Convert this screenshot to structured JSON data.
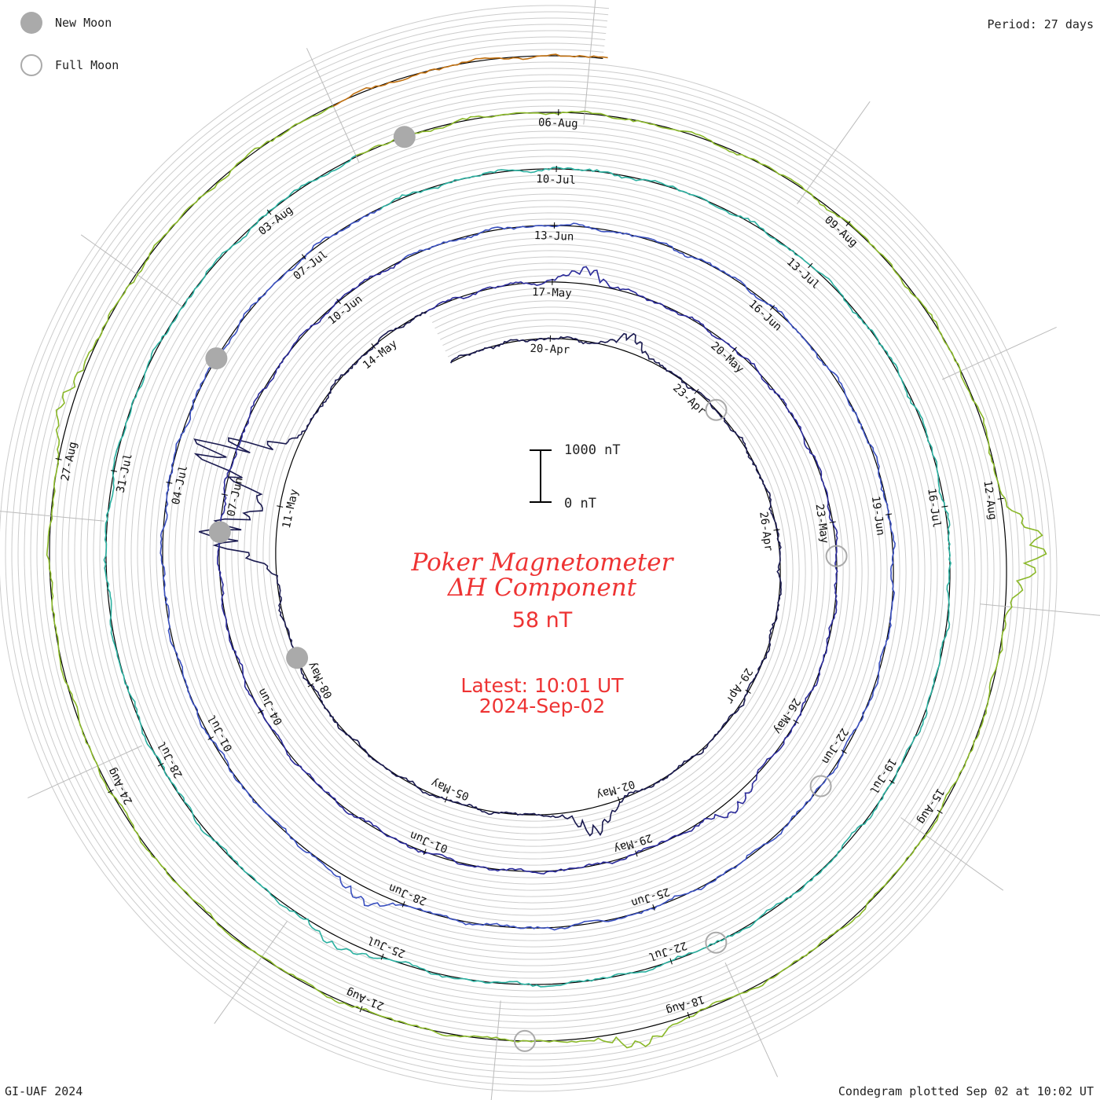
{
  "header": {
    "period": "Period: 27 days"
  },
  "legend": {
    "new_moon": {
      "label": "New Moon",
      "color": "#aaaaaa"
    },
    "full_moon": {
      "label": "Full Moon",
      "color": "#aaaaaa"
    }
  },
  "title": {
    "line1": "Poker Magnetometer",
    "line2": "ΔH Component"
  },
  "current_value": "58 nT",
  "latest": {
    "time": "Latest: 10:01 UT",
    "date": "2024-Sep-02"
  },
  "scale_bar": {
    "top_label": "1000 nT",
    "bottom_label": "0 nT"
  },
  "footer": {
    "left": "GI-UAF 2024",
    "right": "Condegram plotted Sep 02 at 10:02 UT"
  },
  "chart_data": {
    "type": "line",
    "coordinate_system": "polar spiral (condegram)",
    "period_days": 27,
    "units": "nT",
    "start_date": "2024-04-18",
    "end_time": "2024-09-02 10:01 UT",
    "series": [
      {
        "name": "",
        "rotation": 1,
        "color": "#1a1a50",
        "start": "2024-04-18",
        "quiet_level_nT": 0
      },
      {
        "name": "",
        "rotation": 2,
        "color": "#2a2a9a",
        "start": "2024-05-15",
        "quiet_level_nT": 0
      },
      {
        "name": "",
        "rotation": 3,
        "color": "#3a50c0",
        "start": "2024-06-11",
        "quiet_level_nT": 0
      },
      {
        "name": "",
        "rotation": 4,
        "color": "#2ab0a0",
        "start": "2024-07-08",
        "quiet_level_nT": 0
      },
      {
        "name": "",
        "rotation": 5,
        "color": "#8ab828",
        "start": "2024-08-04",
        "quiet_level_nT": 0
      },
      {
        "name": "",
        "rotation": 6,
        "color": "#c07010",
        "start": "2024-08-31",
        "quiet_level_nT": 0
      }
    ],
    "disturbances": [
      {
        "date": "2024-04-21",
        "peak_nT": 370
      },
      {
        "date": "2024-05-02",
        "peak_nT": 560
      },
      {
        "date": "2024-05-10",
        "peak_nT": 1480
      },
      {
        "date": "2024-05-11",
        "peak_nT": 2000
      },
      {
        "date": "2024-05-17",
        "peak_nT": 330
      },
      {
        "date": "2024-05-27",
        "peak_nT": 270
      },
      {
        "date": "2024-06-28",
        "peak_nT": 320
      },
      {
        "date": "2024-07-25",
        "peak_nT": 220
      },
      {
        "date": "2024-08-12",
        "peak_nT": 800
      },
      {
        "date": "2024-08-18",
        "peak_nT": 330
      },
      {
        "date": "2024-08-27",
        "peak_nT": 250
      }
    ],
    "tick_labels": [
      "20-Apr",
      "23-Apr",
      "26-Apr",
      "29-Apr",
      "02-May",
      "05-May",
      "08-May",
      "11-May",
      "14-May",
      "17-May",
      "20-May",
      "23-May",
      "26-May",
      "29-May",
      "01-Jun",
      "04-Jun",
      "07-Jun",
      "10-Jun",
      "13-Jun",
      "16-Jun",
      "19-Jun",
      "22-Jun",
      "25-Jun",
      "28-Jun",
      "01-Jul",
      "04-Jul",
      "07-Jul",
      "10-Jul",
      "13-Jul",
      "16-Jul",
      "19-Jul",
      "22-Jul",
      "25-Jul",
      "28-Jul",
      "31-Jul",
      "03-Aug",
      "06-Aug",
      "09-Aug",
      "12-Aug",
      "15-Aug",
      "18-Aug",
      "21-Aug",
      "24-Aug",
      "27-Aug"
    ],
    "new_moons": [
      "2024-05-08",
      "2024-06-06",
      "2024-07-05",
      "2024-08-04"
    ],
    "full_moons": [
      "2024-04-23",
      "2024-05-23",
      "2024-06-22",
      "2024-07-21",
      "2024-08-19"
    ],
    "grid": true,
    "legend_position": "top-left"
  }
}
